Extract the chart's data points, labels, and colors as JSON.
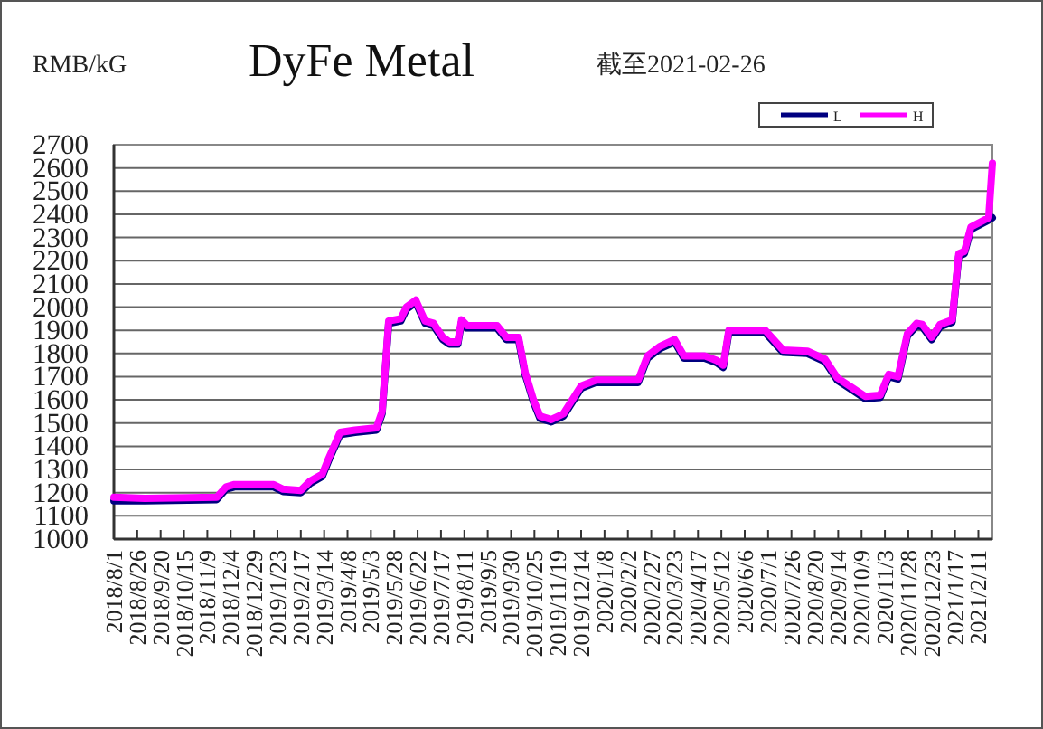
{
  "chart_data": {
    "type": "line",
    "title": "DyFe Metal",
    "subtitle": "截至2021-02-26",
    "ylabel": "RMB/kG",
    "xlim": [
      "2018-08-01",
      "2021-02-26"
    ],
    "xticks": [
      {
        "value": "2018-08-01",
        "label": "2018/8/1"
      },
      {
        "value": "2018-08-26",
        "label": "2018/8/26"
      },
      {
        "value": "2018-09-20",
        "label": "2018/9/20"
      },
      {
        "value": "2018-10-15",
        "label": "2018/10/15"
      },
      {
        "value": "2018-11-09",
        "label": "2018/11/9"
      },
      {
        "value": "2018-12-04",
        "label": "2018/12/4"
      },
      {
        "value": "2018-12-29",
        "label": "2018/12/29"
      },
      {
        "value": "2019-01-23",
        "label": "2019/1/23"
      },
      {
        "value": "2019-02-17",
        "label": "2019/2/17"
      },
      {
        "value": "2019-03-14",
        "label": "2019/3/14"
      },
      {
        "value": "2019-04-08",
        "label": "2019/4/8"
      },
      {
        "value": "2019-05-03",
        "label": "2019/5/3"
      },
      {
        "value": "2019-05-28",
        "label": "2019/5/28"
      },
      {
        "value": "2019-06-22",
        "label": "2019/6/22"
      },
      {
        "value": "2019-07-17",
        "label": "2019/7/17"
      },
      {
        "value": "2019-08-11",
        "label": "2019/8/11"
      },
      {
        "value": "2019-09-05",
        "label": "2019/9/5"
      },
      {
        "value": "2019-09-30",
        "label": "2019/9/30"
      },
      {
        "value": "2019-10-25",
        "label": "2019/10/25"
      },
      {
        "value": "2019-11-19",
        "label": "2019/11/19"
      },
      {
        "value": "2019-12-14",
        "label": "2019/12/14"
      },
      {
        "value": "2020-01-08",
        "label": "2020/1/8"
      },
      {
        "value": "2020-02-02",
        "label": "2020/2/2"
      },
      {
        "value": "2020-02-27",
        "label": "2020/2/27"
      },
      {
        "value": "2020-03-23",
        "label": "2020/3/23"
      },
      {
        "value": "2020-04-17",
        "label": "2020/4/17"
      },
      {
        "value": "2020-05-12",
        "label": "2020/5/12"
      },
      {
        "value": "2020-06-06",
        "label": "2020/6/6"
      },
      {
        "value": "2020-07-01",
        "label": "2020/7/1"
      },
      {
        "value": "2020-07-26",
        "label": "2020/7/26"
      },
      {
        "value": "2020-08-20",
        "label": "2020/8/20"
      },
      {
        "value": "2020-09-14",
        "label": "2020/9/14"
      },
      {
        "value": "2020-10-09",
        "label": "2020/10/9"
      },
      {
        "value": "2020-11-03",
        "label": "2020/11/3"
      },
      {
        "value": "2020-11-28",
        "label": "2020/11/28"
      },
      {
        "value": "2020-12-23",
        "label": "2020/12/23"
      },
      {
        "value": "2021-01-17",
        "label": "2021/1/17"
      },
      {
        "value": "2021-02-11",
        "label": "2021/2/11"
      }
    ],
    "ylim": [
      1000,
      2700
    ],
    "yticks": [
      1000,
      1100,
      1200,
      1300,
      1400,
      1500,
      1600,
      1700,
      1800,
      1900,
      2000,
      2100,
      2200,
      2300,
      2400,
      2500,
      2600,
      2700
    ],
    "grid": "y",
    "legend": "top right",
    "x": [
      "2018-08-01",
      "2018-09-03",
      "2018-11-19",
      "2018-11-29",
      "2018-12-08",
      "2019-01-19",
      "2019-01-29",
      "2019-02-17",
      "2019-02-27",
      "2019-03-12",
      "2019-03-19",
      "2019-03-31",
      "2019-04-16",
      "2019-05-09",
      "2019-05-15",
      "2019-05-22",
      "2019-06-04",
      "2019-06-10",
      "2019-06-20",
      "2019-06-30",
      "2019-07-09",
      "2019-07-19",
      "2019-07-26",
      "2019-08-04",
      "2019-08-08",
      "2019-08-14",
      "2019-09-15",
      "2019-09-25",
      "2019-10-08",
      "2019-10-15",
      "2019-10-24",
      "2019-10-31",
      "2019-11-12",
      "2019-11-25",
      "2019-12-14",
      "2019-12-30",
      "2020-02-13",
      "2020-02-23",
      "2020-03-07",
      "2020-03-23",
      "2020-04-02",
      "2020-04-24",
      "2020-05-07",
      "2020-05-14",
      "2020-05-20",
      "2020-06-28",
      "2020-07-17",
      "2020-08-12",
      "2020-08-31",
      "2020-09-13",
      "2020-09-30",
      "2020-10-13",
      "2020-10-29",
      "2020-11-07",
      "2020-11-17",
      "2020-11-27",
      "2020-12-07",
      "2020-12-13",
      "2020-12-23",
      "2021-01-01",
      "2021-01-14",
      "2021-01-21",
      "2021-01-27",
      "2021-02-03",
      "2021-02-22",
      "2021-02-26"
    ],
    "series": [
      {
        "name": "L",
        "color": "#000080",
        "values": [
          1165,
          1165,
          1170,
          1215,
          1225,
          1225,
          1205,
          1200,
          1240,
          1270,
          1340,
          1450,
          1460,
          1470,
          1540,
          1930,
          1940,
          1990,
          2020,
          1930,
          1920,
          1860,
          1840,
          1840,
          1935,
          1910,
          1910,
          1860,
          1860,
          1710,
          1590,
          1520,
          1505,
          1530,
          1650,
          1675,
          1675,
          1780,
          1820,
          1850,
          1780,
          1780,
          1760,
          1740,
          1890,
          1890,
          1805,
          1800,
          1765,
          1685,
          1640,
          1605,
          1610,
          1700,
          1690,
          1875,
          1920,
          1915,
          1860,
          1915,
          1935,
          2220,
          2230,
          2335,
          2375,
          2385
        ]
      },
      {
        "name": "H",
        "color": "#ff00ff",
        "values": [
          1180,
          1175,
          1180,
          1225,
          1235,
          1235,
          1215,
          1210,
          1250,
          1280,
          1350,
          1460,
          1470,
          1480,
          1550,
          1940,
          1950,
          2000,
          2030,
          1940,
          1930,
          1870,
          1850,
          1850,
          1945,
          1920,
          1920,
          1870,
          1870,
          1720,
          1600,
          1530,
          1515,
          1540,
          1660,
          1685,
          1685,
          1790,
          1830,
          1860,
          1790,
          1790,
          1770,
          1750,
          1900,
          1900,
          1815,
          1810,
          1775,
          1695,
          1650,
          1615,
          1620,
          1710,
          1700,
          1885,
          1930,
          1925,
          1870,
          1925,
          1945,
          2230,
          2240,
          2345,
          2385,
          2620
        ]
      }
    ]
  }
}
